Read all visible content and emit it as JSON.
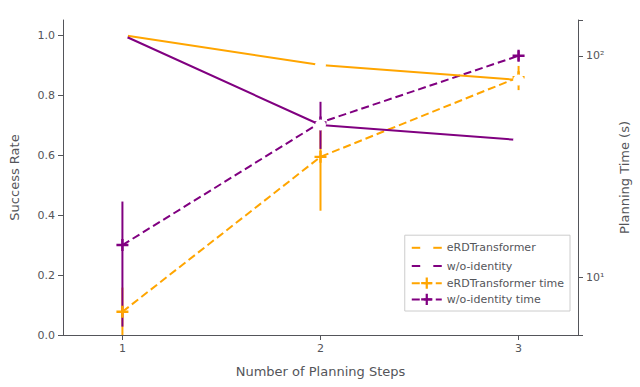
{
  "chart_data": {
    "type": "line",
    "x": [
      1,
      2,
      3
    ],
    "xlabel": "Number of Planning Steps",
    "ylabel": "Success Rate",
    "y2label": "Planning Time (s)",
    "xlim": [
      0.7,
      3.3
    ],
    "xticks": [
      1,
      2,
      3
    ],
    "ylim": [
      0.0,
      1.05
    ],
    "yticks": [
      {
        "value": 0.0,
        "label": "0.0"
      },
      0.2,
      0.4,
      0.6,
      0.8,
      {
        "value": 1.0,
        "label": "1.0"
      }
    ],
    "y2lim": [
      5.5,
      145
    ],
    "y2ticks": [
      {
        "value": 10,
        "label": "10¹"
      },
      {
        "value": 100,
        "label": "10²"
      }
    ],
    "log": "y2",
    "grid": false,
    "legend": "lower right",
    "series": [
      {
        "name": "eRDTransformer",
        "color": "#FFA500",
        "values": [
          1.0,
          0.9,
          0.85
        ],
        "marker": "circle",
        "line_style": "solid"
      },
      {
        "name": "w/o-identity",
        "color": "#800080",
        "values": [
          1.0,
          0.7,
          0.65
        ],
        "marker": "circle",
        "line_style": "solid"
      },
      {
        "name": "eRDTransformer time",
        "color": "#FFA500",
        "values": [
          7.0,
          35.0,
          80.0
        ],
        "err_low": [
          2.0,
          15.0,
          10.0
        ],
        "err_high": [
          2.0,
          15.0,
          10.0
        ],
        "axis": "y2",
        "marker": "plus",
        "line_style": "dashed"
      },
      {
        "name": "w/o-identity time",
        "color": "#800080",
        "values": [
          14.0,
          50.0,
          100.0
        ],
        "err_low": [
          8.0,
          12.0,
          5.0
        ],
        "err_high": [
          8.0,
          12.0,
          5.0
        ],
        "axis": "y2",
        "marker": "plus",
        "line_style": "dashed"
      }
    ]
  }
}
